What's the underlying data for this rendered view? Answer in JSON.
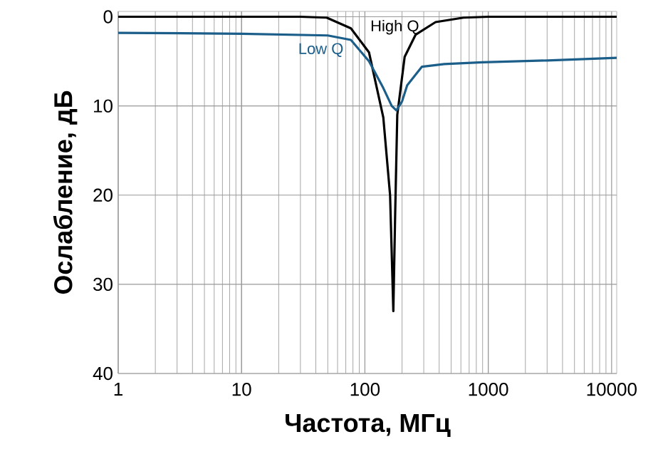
{
  "chart_data": {
    "type": "line",
    "xlabel": "Частота, МГц",
    "ylabel": "Ослабление, дБ",
    "log": "x",
    "grid": true,
    "xlim": [
      1,
      11000
    ],
    "xticks": [
      1,
      10,
      100,
      1000,
      10000
    ],
    "ylim": [
      40,
      -0.6
    ],
    "yticks": [
      0,
      10,
      20,
      30,
      40
    ],
    "series": [
      {
        "name": "High Q",
        "color": "#000000",
        "x": [
          1,
          10,
          30,
          49,
          77,
          108,
          141,
          160,
          170,
          176,
          183,
          210,
          258,
          374,
          630,
          1000,
          11000
        ],
        "values": [
          0,
          0,
          0,
          0.1,
          1.3,
          4,
          11.3,
          20,
          33,
          22,
          11,
          4.5,
          2,
          0.6,
          0.1,
          0,
          0
        ]
      },
      {
        "name": "Low Q",
        "color": "#1b5e8a",
        "x": [
          1,
          10,
          50,
          77,
          108,
          141,
          165,
          180,
          200,
          220,
          290,
          440,
          900,
          3000,
          11000
        ],
        "values": [
          1.8,
          1.9,
          2.1,
          2.6,
          5,
          8,
          10,
          10.5,
          9.5,
          7.7,
          5.6,
          5.3,
          5.1,
          4.9,
          4.6
        ]
      }
    ]
  }
}
